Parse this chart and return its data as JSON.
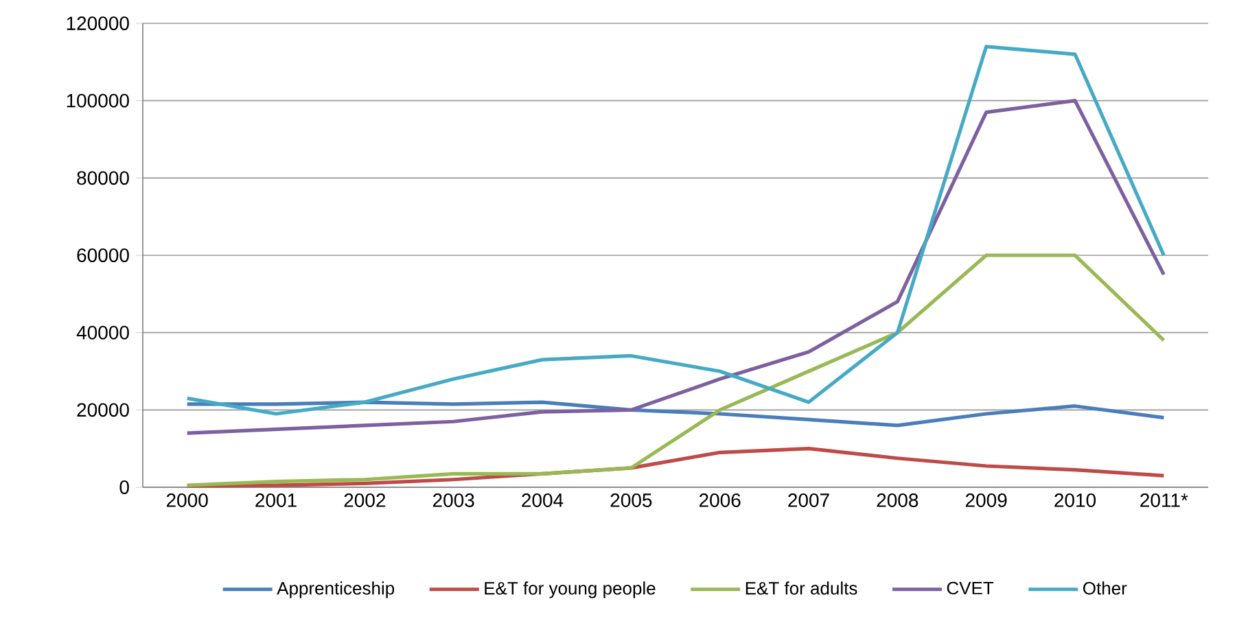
{
  "chart_data": {
    "type": "line",
    "categories": [
      "2000",
      "2001",
      "2002",
      "2003",
      "2004",
      "2005",
      "2006",
      "2007",
      "2008",
      "2009",
      "2010",
      "2011*"
    ],
    "series": [
      {
        "name": "Apprenticeship",
        "color": "#4a7ebb",
        "values": [
          21500,
          21500,
          22000,
          21500,
          22000,
          20000,
          19000,
          17500,
          16000,
          19000,
          21000,
          18000
        ]
      },
      {
        "name": "E&T for young people",
        "color": "#be4b48",
        "values": [
          300,
          500,
          1000,
          2000,
          3500,
          5000,
          9000,
          10000,
          7500,
          5500,
          4500,
          3000
        ]
      },
      {
        "name": "E&T for adults",
        "color": "#98b954",
        "values": [
          500,
          1500,
          2000,
          3500,
          3500,
          5000,
          20000,
          30000,
          40000,
          60000,
          60000,
          38000
        ]
      },
      {
        "name": "CVET",
        "color": "#7d60a0",
        "values": [
          14000,
          15000,
          16000,
          17000,
          19500,
          20000,
          28000,
          35000,
          48000,
          97000,
          100000,
          55000
        ]
      },
      {
        "name": "Other",
        "color": "#46aac5",
        "values": [
          23000,
          19000,
          22000,
          28000,
          33000,
          34000,
          30000,
          22000,
          40000,
          114000,
          112000,
          60000
        ]
      }
    ],
    "ylim": [
      0,
      120000
    ],
    "yticks": [
      0,
      20000,
      40000,
      60000,
      80000,
      100000,
      120000
    ],
    "grid": "y",
    "legend": "bottom",
    "marker": "none",
    "line_style": "solid"
  }
}
